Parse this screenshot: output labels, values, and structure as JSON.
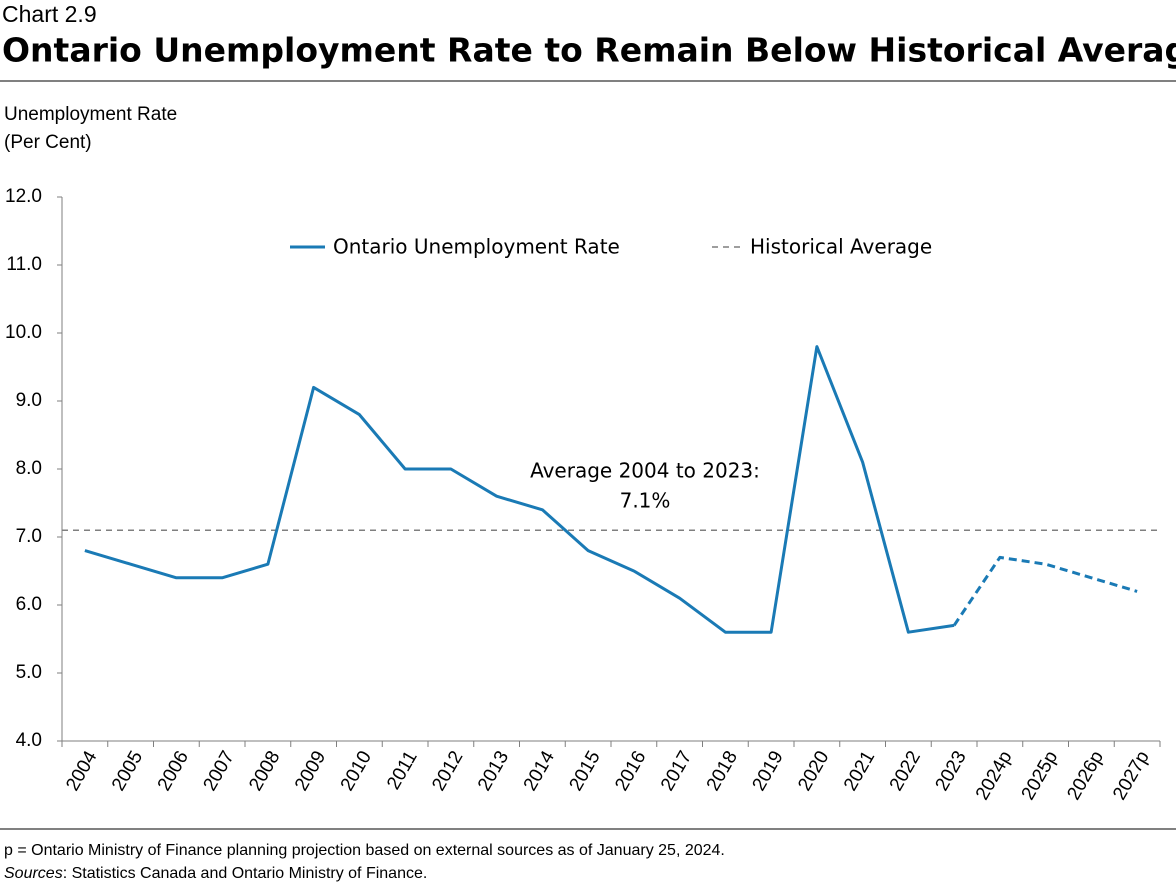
{
  "chart_data": {
    "type": "line",
    "chart_number": "Chart 2.9",
    "title": "Ontario Unemployment Rate to Remain Below Historical Average",
    "y_label": [
      "Unemployment Rate",
      "(Per Cent)"
    ],
    "categories": [
      "2004",
      "2005",
      "2006",
      "2007",
      "2008",
      "2009",
      "2010",
      "2011",
      "2012",
      "2013",
      "2014",
      "2015",
      "2016",
      "2017",
      "2018",
      "2019",
      "2020",
      "2021",
      "2022",
      "2023",
      "2024p",
      "2025p",
      "2026p",
      "2027p"
    ],
    "series": [
      {
        "name": "Ontario Unemployment Rate",
        "color": "#1a7ab5",
        "dashed": false,
        "values": [
          6.8,
          6.6,
          6.4,
          6.4,
          6.6,
          9.2,
          8.8,
          8.0,
          8.0,
          7.6,
          7.4,
          6.8,
          6.5,
          6.1,
          5.6,
          5.6,
          9.8,
          8.1,
          5.6,
          5.7,
          null,
          null,
          null,
          null
        ]
      },
      {
        "color": "#1a7ab5",
        "dashed": true,
        "values": [
          null,
          null,
          null,
          null,
          null,
          null,
          null,
          null,
          null,
          null,
          null,
          null,
          null,
          null,
          null,
          null,
          null,
          null,
          null,
          5.7,
          6.7,
          6.6,
          6.4,
          6.2
        ]
      }
    ],
    "average": {
      "name": "Historical Average",
      "value": 7.1,
      "color": "#7f7f7f",
      "label": "Average 2004 to 2023:",
      "value_label": "7.1%"
    },
    "ylim": [
      4,
      12
    ],
    "yticks": [
      {
        "value": 4,
        "label": "4.0"
      },
      {
        "value": 5,
        "label": "5.0"
      },
      {
        "value": 6,
        "label": "6.0"
      },
      {
        "value": 7,
        "label": "7.0"
      },
      {
        "value": 8,
        "label": "8.0"
      },
      {
        "value": 9,
        "label": "9.0"
      },
      {
        "value": 10,
        "label": "10.0"
      },
      {
        "value": 11,
        "label": "11.0"
      },
      {
        "value": 12,
        "label": "12.0"
      }
    ],
    "grid": false,
    "footnote": "p = Ontario Ministry of Finance planning projection based on external sources as of January 25, 2024.",
    "sources_label": "Sources",
    "sources_text": ": Statistics Canada and Ontario Ministry of Finance."
  }
}
